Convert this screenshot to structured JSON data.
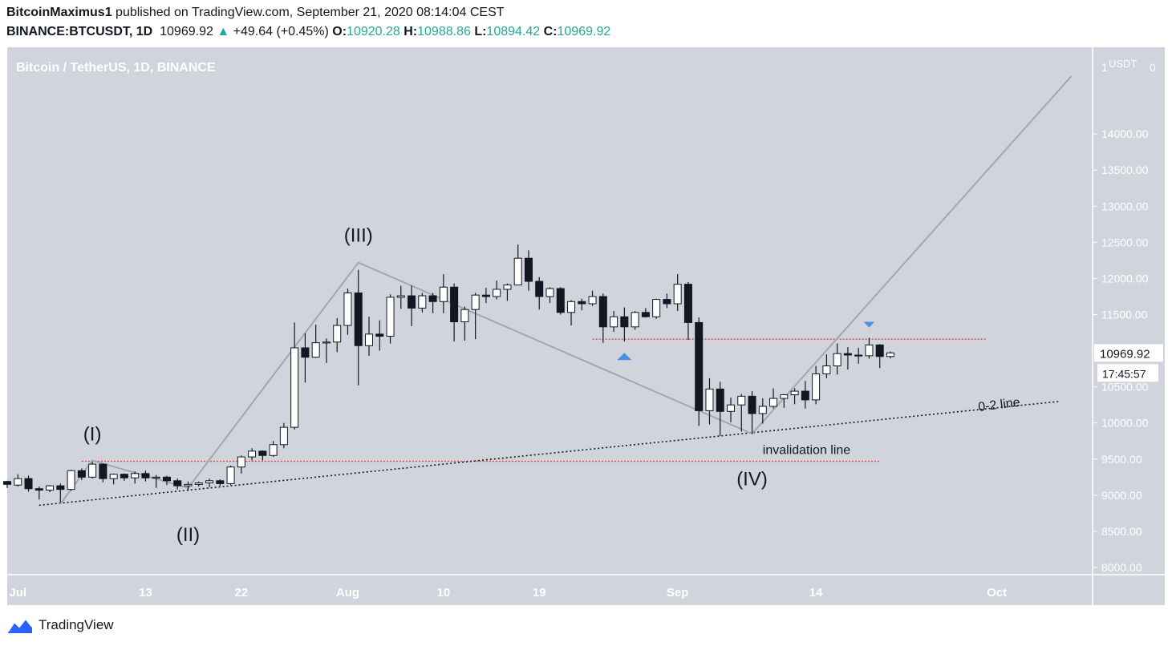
{
  "header": {
    "author": "BitcoinMaximus1",
    "published": "published on TradingView.com, September 21, 2020 08:14:04 CEST",
    "symbol": "BINANCE:BTCUSDT, 1D",
    "last": "10969.92",
    "change": "+49.64 (+0.45%)",
    "o_label": "O:",
    "o": "10920.28",
    "h_label": "H:",
    "h": "10988.86",
    "l_label": "L:",
    "l": "10894.42",
    "c_label": "C:",
    "c": "10969.92"
  },
  "footer": {
    "brand": "TradingView"
  },
  "colors": {
    "plot_bg": "#d1d4dc",
    "axis_bg": "#d1d4dc",
    "up": "#ffffff",
    "down": "#131722",
    "red_line": "#e53935",
    "marker_blue": "#4a8fe7",
    "wave_line": "#a3a6af"
  },
  "chart_data": {
    "type": "candlestick",
    "title": "Bitcoin / TetherUS, 1D, BINANCE",
    "currency": "USDT",
    "ylim": [
      7900,
      15200
    ],
    "y_ticks": [
      8000,
      8500,
      9000,
      9500,
      10000,
      10500,
      11000,
      11500,
      12000,
      12500,
      13000,
      13500,
      14000
    ],
    "y_tick_labels": [
      "8000.00",
      "8500.00",
      "9000.00",
      "9500.00",
      "10000.00",
      "10500.00",
      "11000.00",
      "11500.00",
      "12000.00",
      "12500.00",
      "13000.00",
      "13500.00",
      "14000.00"
    ],
    "axis_top_labels": [
      "1",
      "USDT",
      "0"
    ],
    "x_ticks": [
      {
        "date": "2020-07-01",
        "label": "Jul"
      },
      {
        "date": "2020-07-13",
        "label": "13"
      },
      {
        "date": "2020-07-22",
        "label": "22"
      },
      {
        "date": "2020-08-01",
        "label": "Aug"
      },
      {
        "date": "2020-08-10",
        "label": "10"
      },
      {
        "date": "2020-08-19",
        "label": "19"
      },
      {
        "date": "2020-09-01",
        "label": "Sep"
      },
      {
        "date": "2020-09-14",
        "label": "14"
      },
      {
        "date": "2020-10-01",
        "label": "Oct"
      }
    ],
    "x_range": [
      "2020-06-30",
      "2020-10-10"
    ],
    "candles": [
      [
        "2020-06-30",
        9190,
        9200,
        9100,
        9150
      ],
      [
        "2020-07-01",
        9140,
        9290,
        9120,
        9230
      ],
      [
        "2020-07-02",
        9230,
        9270,
        9050,
        9090
      ],
      [
        "2020-07-03",
        9090,
        9120,
        8940,
        9070
      ],
      [
        "2020-07-04",
        9070,
        9140,
        9040,
        9130
      ],
      [
        "2020-07-05",
        9130,
        9160,
        8900,
        9080
      ],
      [
        "2020-07-06",
        9080,
        9350,
        9060,
        9340
      ],
      [
        "2020-07-07",
        9340,
        9370,
        9210,
        9250
      ],
      [
        "2020-07-08",
        9250,
        9460,
        9230,
        9430
      ],
      [
        "2020-07-09",
        9430,
        9440,
        9180,
        9230
      ],
      [
        "2020-07-10",
        9230,
        9300,
        9150,
        9290
      ],
      [
        "2020-07-11",
        9290,
        9300,
        9200,
        9240
      ],
      [
        "2020-07-12",
        9240,
        9330,
        9160,
        9300
      ],
      [
        "2020-07-13",
        9300,
        9340,
        9190,
        9240
      ],
      [
        "2020-07-14",
        9240,
        9280,
        9100,
        9250
      ],
      [
        "2020-07-15",
        9250,
        9270,
        9140,
        9200
      ],
      [
        "2020-07-16",
        9200,
        9230,
        9080,
        9130
      ],
      [
        "2020-07-17",
        9130,
        9190,
        9060,
        9150
      ],
      [
        "2020-07-18",
        9150,
        9190,
        9120,
        9170
      ],
      [
        "2020-07-19",
        9170,
        9230,
        9110,
        9200
      ],
      [
        "2020-07-20",
        9200,
        9220,
        9130,
        9160
      ],
      [
        "2020-07-21",
        9160,
        9410,
        9140,
        9390
      ],
      [
        "2020-07-22",
        9390,
        9550,
        9300,
        9530
      ],
      [
        "2020-07-23",
        9530,
        9650,
        9480,
        9610
      ],
      [
        "2020-07-24",
        9610,
        9620,
        9480,
        9550
      ],
      [
        "2020-07-25",
        9550,
        9750,
        9530,
        9700
      ],
      [
        "2020-07-26",
        9700,
        10000,
        9650,
        9940
      ],
      [
        "2020-07-27",
        9940,
        11390,
        9910,
        11040
      ],
      [
        "2020-07-28",
        11040,
        11240,
        10560,
        10910
      ],
      [
        "2020-07-29",
        10910,
        11360,
        10900,
        11110
      ],
      [
        "2020-07-30",
        11110,
        11170,
        10830,
        11120
      ],
      [
        "2020-07-31",
        11120,
        11450,
        10980,
        11350
      ],
      [
        "2020-08-01",
        11350,
        11860,
        11220,
        11800
      ],
      [
        "2020-08-02",
        11800,
        12120,
        10520,
        11070
      ],
      [
        "2020-08-03",
        11070,
        11470,
        10930,
        11230
      ],
      [
        "2020-08-04",
        11230,
        11420,
        11000,
        11200
      ],
      [
        "2020-08-05",
        11200,
        11780,
        11100,
        11740
      ],
      [
        "2020-08-06",
        11740,
        11900,
        11580,
        11760
      ],
      [
        "2020-08-07",
        11760,
        11900,
        11340,
        11590
      ],
      [
        "2020-08-08",
        11590,
        11800,
        11530,
        11760
      ],
      [
        "2020-08-09",
        11760,
        11800,
        11520,
        11680
      ],
      [
        "2020-08-10",
        11680,
        12060,
        11520,
        11880
      ],
      [
        "2020-08-11",
        11880,
        11930,
        11130,
        11400
      ],
      [
        "2020-08-12",
        11400,
        11610,
        11140,
        11570
      ],
      [
        "2020-08-13",
        11570,
        11800,
        11160,
        11770
      ],
      [
        "2020-08-14",
        11770,
        11870,
        11660,
        11750
      ],
      [
        "2020-08-15",
        11750,
        11970,
        11710,
        11850
      ],
      [
        "2020-08-16",
        11850,
        11930,
        11690,
        11910
      ],
      [
        "2020-08-17",
        11910,
        12470,
        11910,
        12280
      ],
      [
        "2020-08-18",
        12280,
        12390,
        11830,
        11960
      ],
      [
        "2020-08-19",
        11960,
        12020,
        11570,
        11750
      ],
      [
        "2020-08-20",
        11750,
        11880,
        11660,
        11860
      ],
      [
        "2020-08-21",
        11860,
        11880,
        11500,
        11530
      ],
      [
        "2020-08-22",
        11530,
        11700,
        11350,
        11680
      ],
      [
        "2020-08-23",
        11680,
        11720,
        11560,
        11650
      ],
      [
        "2020-08-24",
        11650,
        11830,
        11620,
        11750
      ],
      [
        "2020-08-25",
        11750,
        11790,
        11110,
        11330
      ],
      [
        "2020-08-26",
        11330,
        11550,
        11260,
        11470
      ],
      [
        "2020-08-27",
        11470,
        11600,
        11130,
        11330
      ],
      [
        "2020-08-28",
        11330,
        11550,
        11290,
        11530
      ],
      [
        "2020-08-29",
        11530,
        11590,
        11460,
        11470
      ],
      [
        "2020-08-30",
        11470,
        11720,
        11440,
        11710
      ],
      [
        "2020-08-31",
        11710,
        11790,
        11590,
        11650
      ],
      [
        "2020-09-01",
        11650,
        12060,
        11550,
        11920
      ],
      [
        "2020-09-02",
        11920,
        11950,
        11150,
        11390
      ],
      [
        "2020-09-03",
        11390,
        11460,
        9960,
        10170
      ],
      [
        "2020-09-04",
        10170,
        10620,
        9980,
        10470
      ],
      [
        "2020-09-05",
        10470,
        10570,
        9820,
        10160
      ],
      [
        "2020-09-06",
        10160,
        10350,
        10010,
        10250
      ],
      [
        "2020-09-07",
        10250,
        10400,
        9880,
        10370
      ],
      [
        "2020-09-08",
        10370,
        10440,
        9850,
        10130
      ],
      [
        "2020-09-09",
        10130,
        10340,
        9990,
        10230
      ],
      [
        "2020-09-10",
        10230,
        10480,
        10200,
        10340
      ],
      [
        "2020-09-11",
        10340,
        10400,
        10210,
        10390
      ],
      [
        "2020-09-12",
        10390,
        10480,
        10260,
        10440
      ],
      [
        "2020-09-13",
        10440,
        10580,
        10200,
        10320
      ],
      [
        "2020-09-14",
        10320,
        10790,
        10260,
        10680
      ],
      [
        "2020-09-15",
        10680,
        10950,
        10620,
        10790
      ],
      [
        "2020-09-16",
        10790,
        11100,
        10670,
        10960
      ],
      [
        "2020-09-17",
        10960,
        11050,
        10740,
        10940
      ],
      [
        "2020-09-18",
        10940,
        11040,
        10820,
        10930
      ],
      [
        "2020-09-19",
        10930,
        11180,
        10890,
        11080
      ],
      [
        "2020-09-20",
        11080,
        11090,
        10760,
        10920
      ],
      [
        "2020-09-21",
        10920,
        10989,
        10894,
        10970
      ]
    ],
    "last_price_label": "10969.92",
    "countdown_label": "17:45:57",
    "wave_labels": [
      {
        "text": "(I)",
        "date": "2020-07-08",
        "value": 9650,
        "position": "above"
      },
      {
        "text": "(II)",
        "date": "2020-07-17",
        "value": 8700,
        "position": "below"
      },
      {
        "text": "(III)",
        "date": "2020-08-02",
        "value": 12400,
        "position": "above"
      },
      {
        "text": "(IV)",
        "date": "2020-09-08",
        "value": 9470,
        "position": "below"
      }
    ],
    "wave_path": [
      [
        "2020-07-05",
        8880
      ],
      [
        "2020-07-08",
        9480
      ],
      [
        "2020-07-17",
        9100
      ],
      [
        "2020-08-02",
        12220
      ],
      [
        "2020-09-08",
        9850
      ],
      [
        "2020-10-08",
        14800
      ]
    ],
    "trendline_0_2": {
      "from": [
        "2020-07-03",
        8860
      ],
      "to": [
        "2020-10-07",
        10300
      ],
      "label": "0-2 line"
    },
    "red_lines": [
      {
        "from": "2020-07-07",
        "to": "2020-09-20",
        "value": 9470,
        "label": "invalidation line"
      },
      {
        "from": "2020-08-24",
        "to": "2020-09-30",
        "value": 11160,
        "label": ""
      }
    ],
    "markers": [
      {
        "date": "2020-08-27",
        "value": 10920,
        "dir": "up"
      },
      {
        "date": "2020-09-19",
        "value": 11360,
        "dir": "down"
      }
    ]
  }
}
